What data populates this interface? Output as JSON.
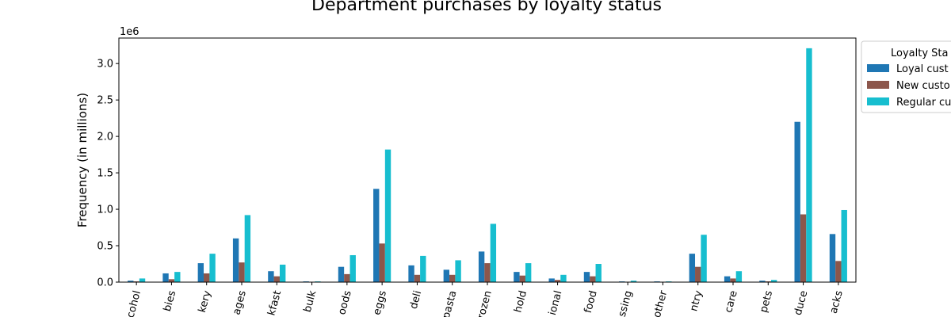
{
  "chart_data": {
    "type": "bar",
    "title": "Department purchases by loyalty status",
    "ylabel": "Frequency (in millions)",
    "xlabel": "",
    "y_multiplier_label": "1e6",
    "ylim": [
      0,
      3.35
    ],
    "yticks": [
      0.0,
      0.5,
      1.0,
      1.5,
      2.0,
      2.5,
      3.0
    ],
    "ytick_labels": [
      "0.0",
      "0.5",
      "1.0",
      "1.5",
      "2.0",
      "2.5",
      "3.0"
    ],
    "categories": [
      "alcohol",
      "babies",
      "bakery",
      "beverages",
      "breakfast",
      "bulk",
      "canned goods",
      "dairy eggs",
      "deli",
      "dry goods pasta",
      "frozen",
      "household",
      "international",
      "meat seafood",
      "missing",
      "other",
      "pantry",
      "personal care",
      "pets",
      "produce",
      "snacks"
    ],
    "category_labels_visible": [
      "cohol",
      "bies",
      "kery",
      "ages",
      "kfast",
      "bulk",
      "oods",
      "eggs",
      "deli",
      "pasta",
      "rozen",
      "hold",
      "ional",
      "food",
      "ssing",
      "other",
      "ntry",
      "care",
      "pets",
      "duce",
      "acks"
    ],
    "legend_title": "Loyalty Sta",
    "legend_position": "outside-right",
    "series": [
      {
        "name": "Loyal cust",
        "color": "#1f77b4",
        "values": [
          0.02,
          0.12,
          0.26,
          0.6,
          0.15,
          0.01,
          0.21,
          1.28,
          0.23,
          0.17,
          0.42,
          0.14,
          0.05,
          0.14,
          0.01,
          0.01,
          0.39,
          0.08,
          0.02,
          2.2,
          0.66
        ]
      },
      {
        "name": "New custo",
        "color": "#8c564b",
        "values": [
          0.01,
          0.04,
          0.12,
          0.27,
          0.08,
          0.005,
          0.11,
          0.53,
          0.1,
          0.1,
          0.26,
          0.09,
          0.03,
          0.08,
          0.005,
          0.005,
          0.21,
          0.05,
          0.01,
          0.93,
          0.29
        ]
      },
      {
        "name": "Regular cu",
        "color": "#17becf",
        "values": [
          0.05,
          0.14,
          0.39,
          0.92,
          0.24,
          0.01,
          0.37,
          1.82,
          0.36,
          0.3,
          0.8,
          0.26,
          0.1,
          0.25,
          0.02,
          0.01,
          0.65,
          0.15,
          0.03,
          3.21,
          0.99
        ]
      }
    ]
  }
}
